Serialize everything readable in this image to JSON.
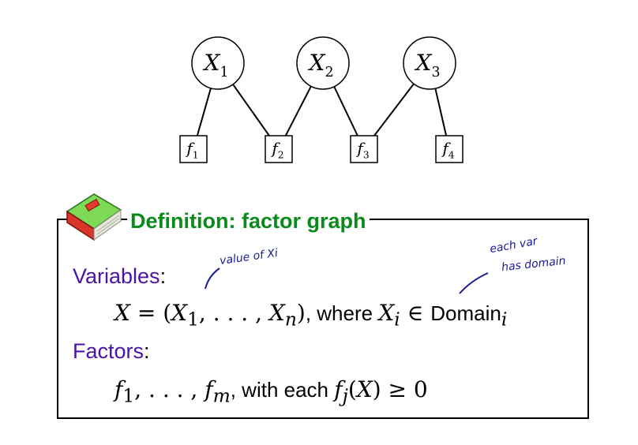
{
  "graph": {
    "variables": [
      {
        "id": "X1",
        "base": "X",
        "sub": "1"
      },
      {
        "id": "X2",
        "base": "X",
        "sub": "2"
      },
      {
        "id": "X3",
        "base": "X",
        "sub": "3"
      }
    ],
    "factors": [
      {
        "id": "f1",
        "base": "f",
        "sub": "1"
      },
      {
        "id": "f2",
        "base": "f",
        "sub": "2"
      },
      {
        "id": "f3",
        "base": "f",
        "sub": "3"
      },
      {
        "id": "f4",
        "base": "f",
        "sub": "4"
      }
    ],
    "edges": [
      [
        "X1",
        "f1"
      ],
      [
        "X1",
        "f2"
      ],
      [
        "X2",
        "f2"
      ],
      [
        "X2",
        "f3"
      ],
      [
        "X3",
        "f3"
      ],
      [
        "X3",
        "f4"
      ]
    ]
  },
  "definition": {
    "title": "Definition: factor graph",
    "variables_label": "Variables",
    "variables_formula": "X = (X1, . . . , Xn), where Xi ∈ Domaini",
    "factors_label": "Factors",
    "factors_formula": "f1, . . . , fm, with each fj(X) ≥ 0",
    "annotation_1": "value of Xi",
    "annotation_2_line1": "each var",
    "annotation_2_line2": "has domain"
  },
  "colors": {
    "title": "#0a8a1a",
    "labels": "#4b12a8",
    "ink": "#1a1a9a"
  }
}
